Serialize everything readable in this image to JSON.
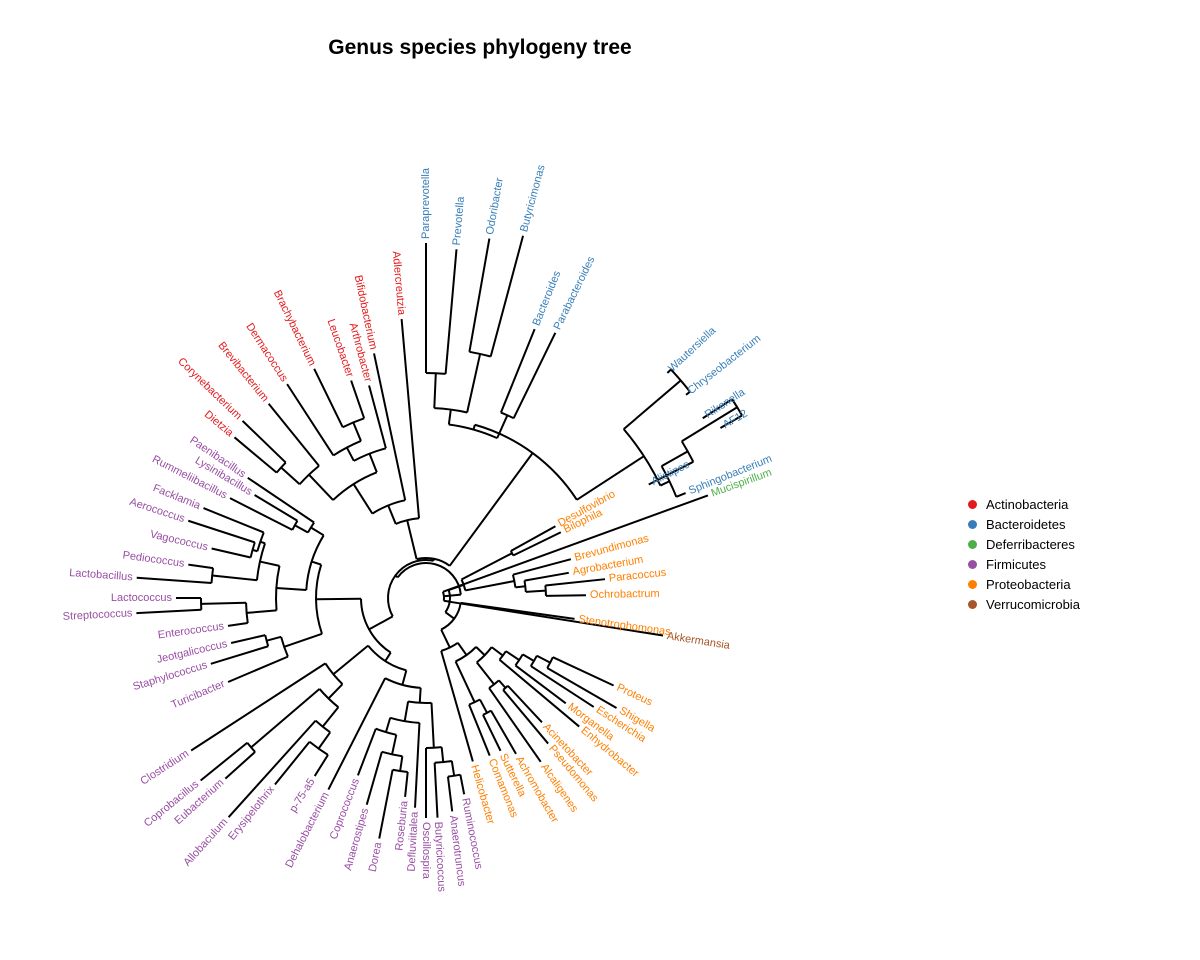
{
  "title": "Genus species phylogeny tree",
  "colors": {
    "Actinobacteria": "#e41a1c",
    "Bacteroidetes": "#377eb8",
    "Deferribacteres": "#4daf4a",
    "Firmicutes": "#984ea3",
    "Proteobacteria": "#ff7f00",
    "Verrucomicrobia": "#a65628"
  },
  "legend": {
    "items": [
      {
        "label": "Actinobacteria",
        "color": "#e41a1c"
      },
      {
        "label": "Bacteroidetes",
        "color": "#377eb8"
      },
      {
        "label": "Deferribacteres",
        "color": "#4daf4a"
      },
      {
        "label": "Firmicutes",
        "color": "#984ea3"
      },
      {
        "label": "Proteobacteria",
        "color": "#ff7f00"
      },
      {
        "label": "Verrucomicrobia",
        "color": "#a65628"
      }
    ]
  },
  "tree": {
    "leaves": [
      {
        "name": "Mucispirillum",
        "phylum": "Deferribacteres"
      },
      {
        "name": "Desulfovibrio",
        "phylum": "Proteobacteria"
      },
      {
        "name": "Bilophila",
        "phylum": "Proteobacteria"
      },
      {
        "name": "Brevundimonas",
        "phylum": "Proteobacteria"
      },
      {
        "name": "Agrobacterium",
        "phylum": "Proteobacteria"
      },
      {
        "name": "Paracoccus",
        "phylum": "Proteobacteria"
      },
      {
        "name": "Ochrobactrum",
        "phylum": "Proteobacteria"
      },
      {
        "name": "Akkermansia",
        "phylum": "Verrucomicrobia"
      },
      {
        "name": "Stenotrophomonas",
        "phylum": "Proteobacteria"
      },
      {
        "name": "Proteus",
        "phylum": "Proteobacteria"
      },
      {
        "name": "Shigella",
        "phylum": "Proteobacteria"
      },
      {
        "name": "Escherichia",
        "phylum": "Proteobacteria"
      },
      {
        "name": "Morganella",
        "phylum": "Proteobacteria"
      },
      {
        "name": "Enhydrobacter",
        "phylum": "Proteobacteria"
      },
      {
        "name": "Acinetobacter",
        "phylum": "Proteobacteria"
      },
      {
        "name": "Pseudomonas",
        "phylum": "Proteobacteria"
      },
      {
        "name": "Alcaligenes",
        "phylum": "Proteobacteria"
      },
      {
        "name": "Achromobacter",
        "phylum": "Proteobacteria"
      },
      {
        "name": "Sutterella",
        "phylum": "Proteobacteria"
      },
      {
        "name": "Comamonas",
        "phylum": "Proteobacteria"
      },
      {
        "name": "Helicobacter",
        "phylum": "Proteobacteria"
      },
      {
        "name": "Ruminococcus",
        "phylum": "Firmicutes"
      },
      {
        "name": "Anaerotruncus",
        "phylum": "Firmicutes"
      },
      {
        "name": "Butyricicoccus",
        "phylum": "Firmicutes"
      },
      {
        "name": "Oscillospira",
        "phylum": "Firmicutes"
      },
      {
        "name": "Defluviitalea",
        "phylum": "Firmicutes"
      },
      {
        "name": "Roseburia",
        "phylum": "Firmicutes"
      },
      {
        "name": "Dorea",
        "phylum": "Firmicutes"
      },
      {
        "name": "Anaerostipes",
        "phylum": "Firmicutes"
      },
      {
        "name": "Coprococcus",
        "phylum": "Firmicutes"
      },
      {
        "name": "Dehalobacterium",
        "phylum": "Firmicutes"
      },
      {
        "name": "p-75-a5",
        "phylum": "Firmicutes"
      },
      {
        "name": "Erysipelothrix",
        "phylum": "Firmicutes"
      },
      {
        "name": "Allobaculum",
        "phylum": "Firmicutes"
      },
      {
        "name": "Eubacterium",
        "phylum": "Firmicutes"
      },
      {
        "name": "Coprobacillus",
        "phylum": "Firmicutes"
      },
      {
        "name": "Clostridium",
        "phylum": "Firmicutes"
      },
      {
        "name": "Turicibacter",
        "phylum": "Firmicutes"
      },
      {
        "name": "Staphylococcus",
        "phylum": "Firmicutes"
      },
      {
        "name": "Jeotgalicoccus",
        "phylum": "Firmicutes"
      },
      {
        "name": "Enterococcus",
        "phylum": "Firmicutes"
      },
      {
        "name": "Streptococcus",
        "phylum": "Firmicutes"
      },
      {
        "name": "Lactococcus",
        "phylum": "Firmicutes"
      },
      {
        "name": "Lactobacillus",
        "phylum": "Firmicutes"
      },
      {
        "name": "Pediococcus",
        "phylum": "Firmicutes"
      },
      {
        "name": "Vagococcus",
        "phylum": "Firmicutes"
      },
      {
        "name": "Aerococcus",
        "phylum": "Firmicutes"
      },
      {
        "name": "Facklamia",
        "phylum": "Firmicutes"
      },
      {
        "name": "Rummeliibacillus",
        "phylum": "Firmicutes"
      },
      {
        "name": "Lysinibacillus",
        "phylum": "Firmicutes"
      },
      {
        "name": "Paenibacillus",
        "phylum": "Firmicutes"
      },
      {
        "name": "Dietzia",
        "phylum": "Actinobacteria"
      },
      {
        "name": "Corynebacterium",
        "phylum": "Actinobacteria"
      },
      {
        "name": "Brevibacterium",
        "phylum": "Actinobacteria"
      },
      {
        "name": "Dermacoccus",
        "phylum": "Actinobacteria"
      },
      {
        "name": "Brachybacterium",
        "phylum": "Actinobacteria"
      },
      {
        "name": "Leucobacter",
        "phylum": "Actinobacteria"
      },
      {
        "name": "Arthrobacter",
        "phylum": "Actinobacteria"
      },
      {
        "name": "Bifidobacterium",
        "phylum": "Actinobacteria"
      },
      {
        "name": "Adlercreutzia",
        "phylum": "Actinobacteria"
      },
      {
        "name": "Paraprevotella",
        "phylum": "Bacteroidetes"
      },
      {
        "name": "Prevotella",
        "phylum": "Bacteroidetes"
      },
      {
        "name": "Odoribacter",
        "phylum": "Bacteroidetes"
      },
      {
        "name": "Butyricimonas",
        "phylum": "Bacteroidetes"
      },
      {
        "name": "Bacteroides",
        "phylum": "Bacteroidetes"
      },
      {
        "name": "Parabacteroides",
        "phylum": "Bacteroidetes"
      },
      {
        "name": "Wautersiella",
        "phylum": "Bacteroidetes"
      },
      {
        "name": "Chryseobacterium",
        "phylum": "Bacteroidetes"
      },
      {
        "name": "Rikenella",
        "phylum": "Bacteroidetes"
      },
      {
        "name": "AF12",
        "phylum": "Bacteroidetes"
      },
      {
        "name": "Alistipes",
        "phylum": "Bacteroidetes"
      },
      {
        "name": "Sphingobacterium",
        "phylum": "Bacteroidetes"
      }
    ]
  }
}
